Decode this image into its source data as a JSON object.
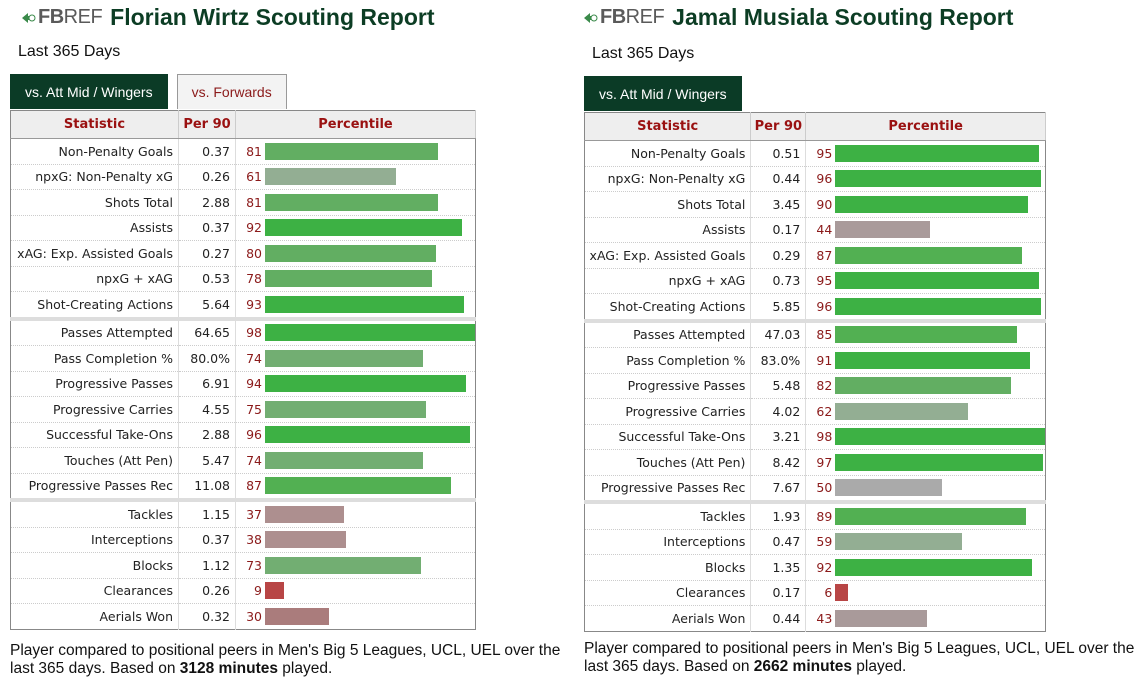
{
  "logo": {
    "fb": "FB",
    "ref": "REF"
  },
  "colors": {
    "title": "#0c3d24",
    "tab_active": "#0b3b26",
    "header_text": "#9a1111"
  },
  "columns": {
    "statistic": "Statistic",
    "per90": "Per 90",
    "percentile": "Percentile"
  },
  "players": [
    {
      "title": "Florian Wirtz Scouting Report",
      "subtitle": "Last 365 Days",
      "tabs": [
        {
          "label": "vs. Att Mid / Wingers",
          "active": true
        },
        {
          "label": "vs. Forwards",
          "active": false
        }
      ],
      "sections": [
        [
          [
            "Non-Penalty Goals",
            "0.37",
            81
          ],
          [
            "npxG: Non-Penalty xG",
            "0.26",
            61
          ],
          [
            "Shots Total",
            "2.88",
            81
          ],
          [
            "Assists",
            "0.37",
            92
          ],
          [
            "xAG: Exp. Assisted Goals",
            "0.27",
            80
          ],
          [
            "npxG + xAG",
            "0.53",
            78
          ],
          [
            "Shot-Creating Actions",
            "5.64",
            93
          ]
        ],
        [
          [
            "Passes Attempted",
            "64.65",
            98
          ],
          [
            "Pass Completion %",
            "80.0%",
            74
          ],
          [
            "Progressive Passes",
            "6.91",
            94
          ],
          [
            "Progressive Carries",
            "4.55",
            75
          ],
          [
            "Successful Take-Ons",
            "2.88",
            96
          ],
          [
            "Touches (Att Pen)",
            "5.47",
            74
          ],
          [
            "Progressive Passes Rec",
            "11.08",
            87
          ]
        ],
        [
          [
            "Tackles",
            "1.15",
            37
          ],
          [
            "Interceptions",
            "0.37",
            38
          ],
          [
            "Blocks",
            "1.12",
            73
          ],
          [
            "Clearances",
            "0.26",
            9
          ],
          [
            "Aerials Won",
            "0.32",
            30
          ]
        ]
      ],
      "footer": {
        "pre": "Player compared to positional peers in Men's Big 5 Leagues, UCL, UEL over the last 365 days. Based on ",
        "minutes": "3128 minutes",
        "post": " played."
      }
    },
    {
      "title": "Jamal Musiala Scouting Report",
      "subtitle": "Last 365 Days",
      "tabs": [
        {
          "label": "vs. Att Mid / Wingers",
          "active": true
        }
      ],
      "sections": [
        [
          [
            "Non-Penalty Goals",
            "0.51",
            95
          ],
          [
            "npxG: Non-Penalty xG",
            "0.44",
            96
          ],
          [
            "Shots Total",
            "3.45",
            90
          ],
          [
            "Assists",
            "0.17",
            44
          ],
          [
            "xAG: Exp. Assisted Goals",
            "0.29",
            87
          ],
          [
            "npxG + xAG",
            "0.73",
            95
          ],
          [
            "Shot-Creating Actions",
            "5.85",
            96
          ]
        ],
        [
          [
            "Passes Attempted",
            "47.03",
            85
          ],
          [
            "Pass Completion %",
            "83.0%",
            91
          ],
          [
            "Progressive Passes",
            "5.48",
            82
          ],
          [
            "Progressive Carries",
            "4.02",
            62
          ],
          [
            "Successful Take-Ons",
            "3.21",
            98
          ],
          [
            "Touches (Att Pen)",
            "8.42",
            97
          ],
          [
            "Progressive Passes Rec",
            "7.67",
            50
          ]
        ],
        [
          [
            "Tackles",
            "1.93",
            89
          ],
          [
            "Interceptions",
            "0.47",
            59
          ],
          [
            "Blocks",
            "1.35",
            92
          ],
          [
            "Clearances",
            "0.17",
            6
          ],
          [
            "Aerials Won",
            "0.44",
            43
          ]
        ]
      ],
      "footer": {
        "pre": "Player compared to positional peers in Men's Big 5 Leagues, UCL, UEL over the last 365 days. Based on ",
        "minutes": "2662 minutes",
        "post": " played."
      }
    }
  ]
}
